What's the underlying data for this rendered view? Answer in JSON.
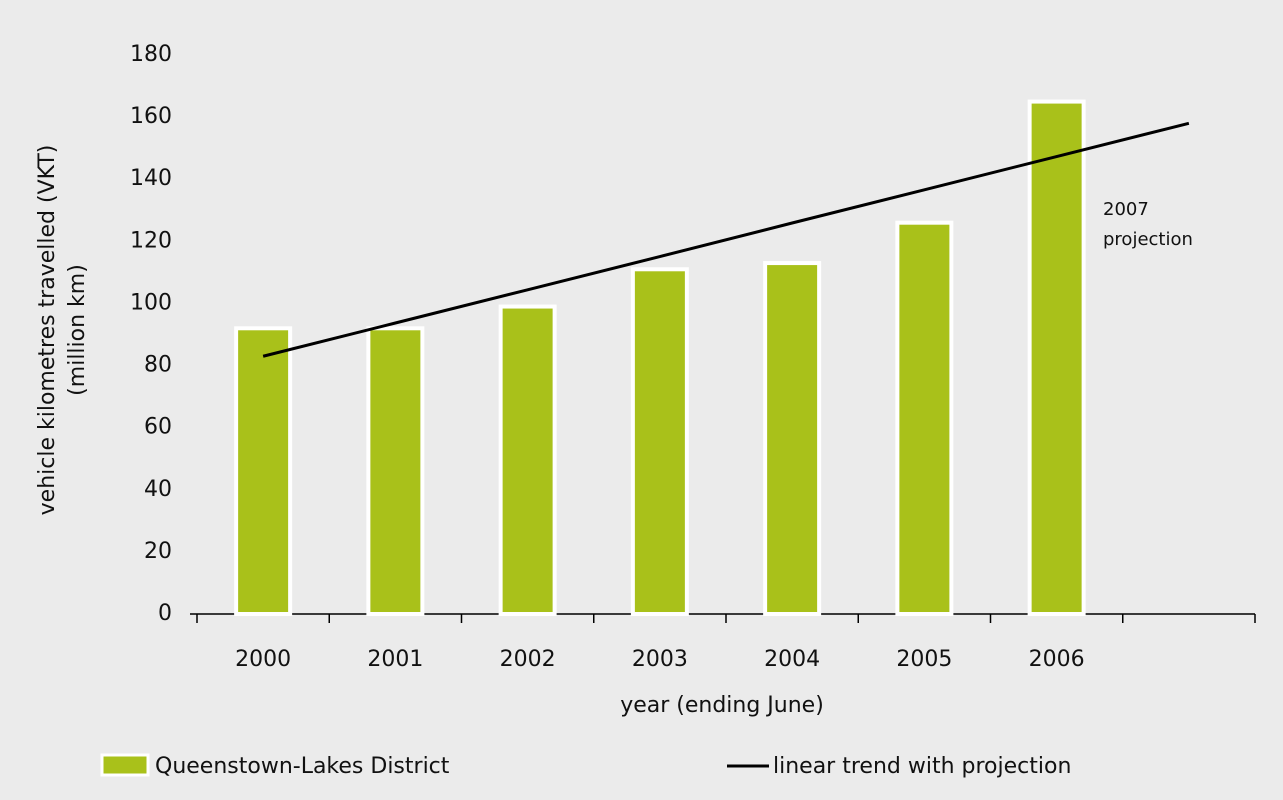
{
  "chart_data": {
    "type": "bar",
    "xlabel": "year (ending June)",
    "ylabel": [
      "vehicle kilometres travelled (VKT)",
      "(million km)"
    ],
    "annotation": [
      "2007",
      "projection"
    ],
    "categories": [
      "2000",
      "2001",
      "2002",
      "2003",
      "2004",
      "2005",
      "2006",
      null
    ],
    "series": [
      {
        "name": "Queenstown-Lakes District",
        "type": "bar",
        "color": "#a9c11a",
        "values": [
          92,
          92,
          99,
          111,
          113,
          126,
          165,
          null
        ]
      },
      {
        "name": "linear trend with projection",
        "type": "line",
        "color": "#000000",
        "values": [
          83,
          93.7,
          104.4,
          115.1,
          125.9,
          136.6,
          147.3,
          158
        ]
      }
    ],
    "ylim": [
      0,
      180
    ],
    "yticks": [
      0,
      20,
      40,
      60,
      80,
      100,
      120,
      140,
      160,
      180
    ],
    "grid": false
  }
}
